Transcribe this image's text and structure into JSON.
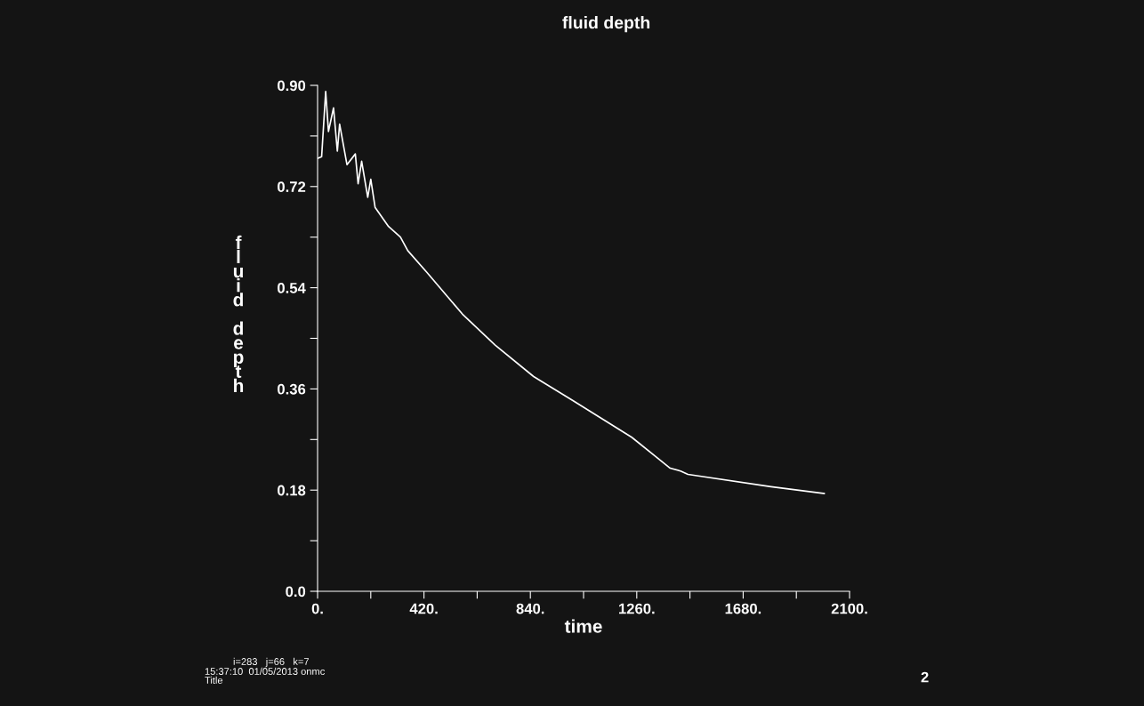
{
  "chart_data": {
    "type": "line",
    "title": "fluid depth",
    "xlabel": "time",
    "ylabel": "fluid depth",
    "x": [
      0,
      16,
      32,
      43,
      63,
      78,
      87,
      116,
      149,
      160,
      174,
      198,
      210,
      227,
      280,
      327,
      356,
      432,
      572,
      701,
      853,
      1005,
      1240,
      1392,
      1433,
      1462,
      1790,
      2000
    ],
    "series": [
      {
        "color": "#ffffff",
        "values": [
          0.77,
          0.773,
          0.889,
          0.818,
          0.86,
          0.783,
          0.831,
          0.759,
          0.778,
          0.725,
          0.765,
          0.701,
          0.733,
          0.683,
          0.649,
          0.63,
          0.606,
          0.567,
          0.493,
          0.438,
          0.382,
          0.34,
          0.274,
          0.219,
          0.214,
          0.208,
          0.186,
          0.174
        ]
      }
    ],
    "xlim": [
      0,
      2100
    ],
    "xticks": [
      {
        "value": 0,
        "label": "0."
      },
      {
        "value": 210,
        "label": null
      },
      {
        "value": 420,
        "label": "420."
      },
      {
        "value": 630,
        "label": null
      },
      {
        "value": 840,
        "label": "840."
      },
      {
        "value": 1050,
        "label": null
      },
      {
        "value": 1260,
        "label": "1260."
      },
      {
        "value": 1470,
        "label": null
      },
      {
        "value": 1680,
        "label": "1680."
      },
      {
        "value": 1890,
        "label": null
      },
      {
        "value": 2100,
        "label": "2100."
      }
    ],
    "ylim": [
      0,
      0.9
    ],
    "yticks": [
      {
        "value": 0,
        "label": "0.0"
      },
      {
        "value": 0.09,
        "label": null
      },
      0.18,
      {
        "value": 0.27,
        "label": null
      },
      0.36,
      {
        "value": 0.45,
        "label": null
      },
      0.54,
      {
        "value": 0.63,
        "label": null
      },
      0.72,
      {
        "value": 0.81,
        "label": null
      },
      {
        "value": 0.9,
        "label": "0.90"
      }
    ],
    "grid": false,
    "marker": "none",
    "line_style": "solid",
    "annotations": [
      "i=283   j=66   k=7",
      "15:37:10  01/05/2013 onmc",
      "Title",
      "2"
    ]
  }
}
